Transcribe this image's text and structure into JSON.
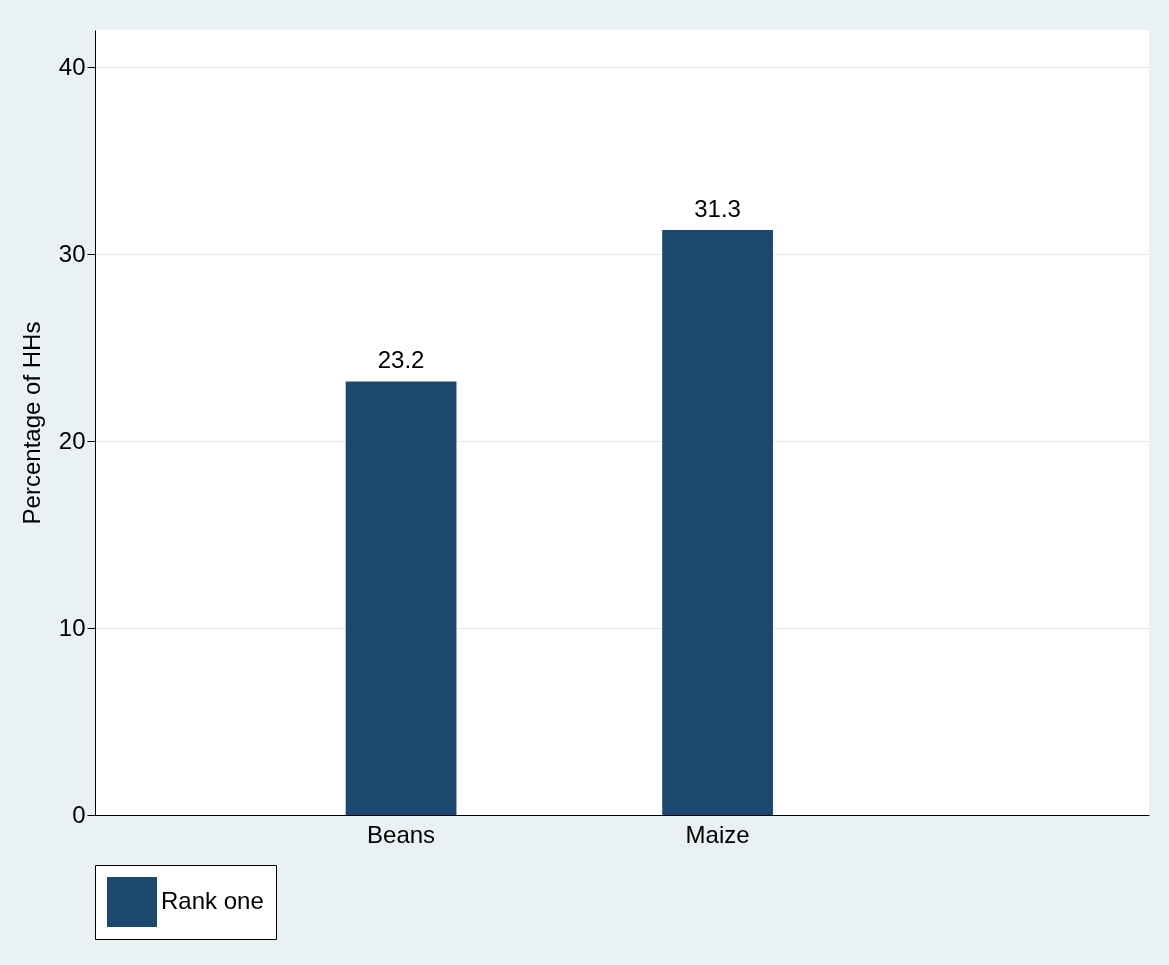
{
  "chart_data": {
    "type": "bar",
    "ylabel": "Percentage of HHs",
    "categories": [
      "Beans",
      "Maize"
    ],
    "series": [
      {
        "name": "Rank one",
        "color": "#1c476e",
        "values": [
          23.2,
          31.3
        ]
      }
    ],
    "ylim": [
      0,
      42
    ],
    "yticks": [
      0,
      10,
      20,
      30,
      40
    ],
    "grid": "y",
    "legend": "bottom",
    "data_labels": true
  }
}
